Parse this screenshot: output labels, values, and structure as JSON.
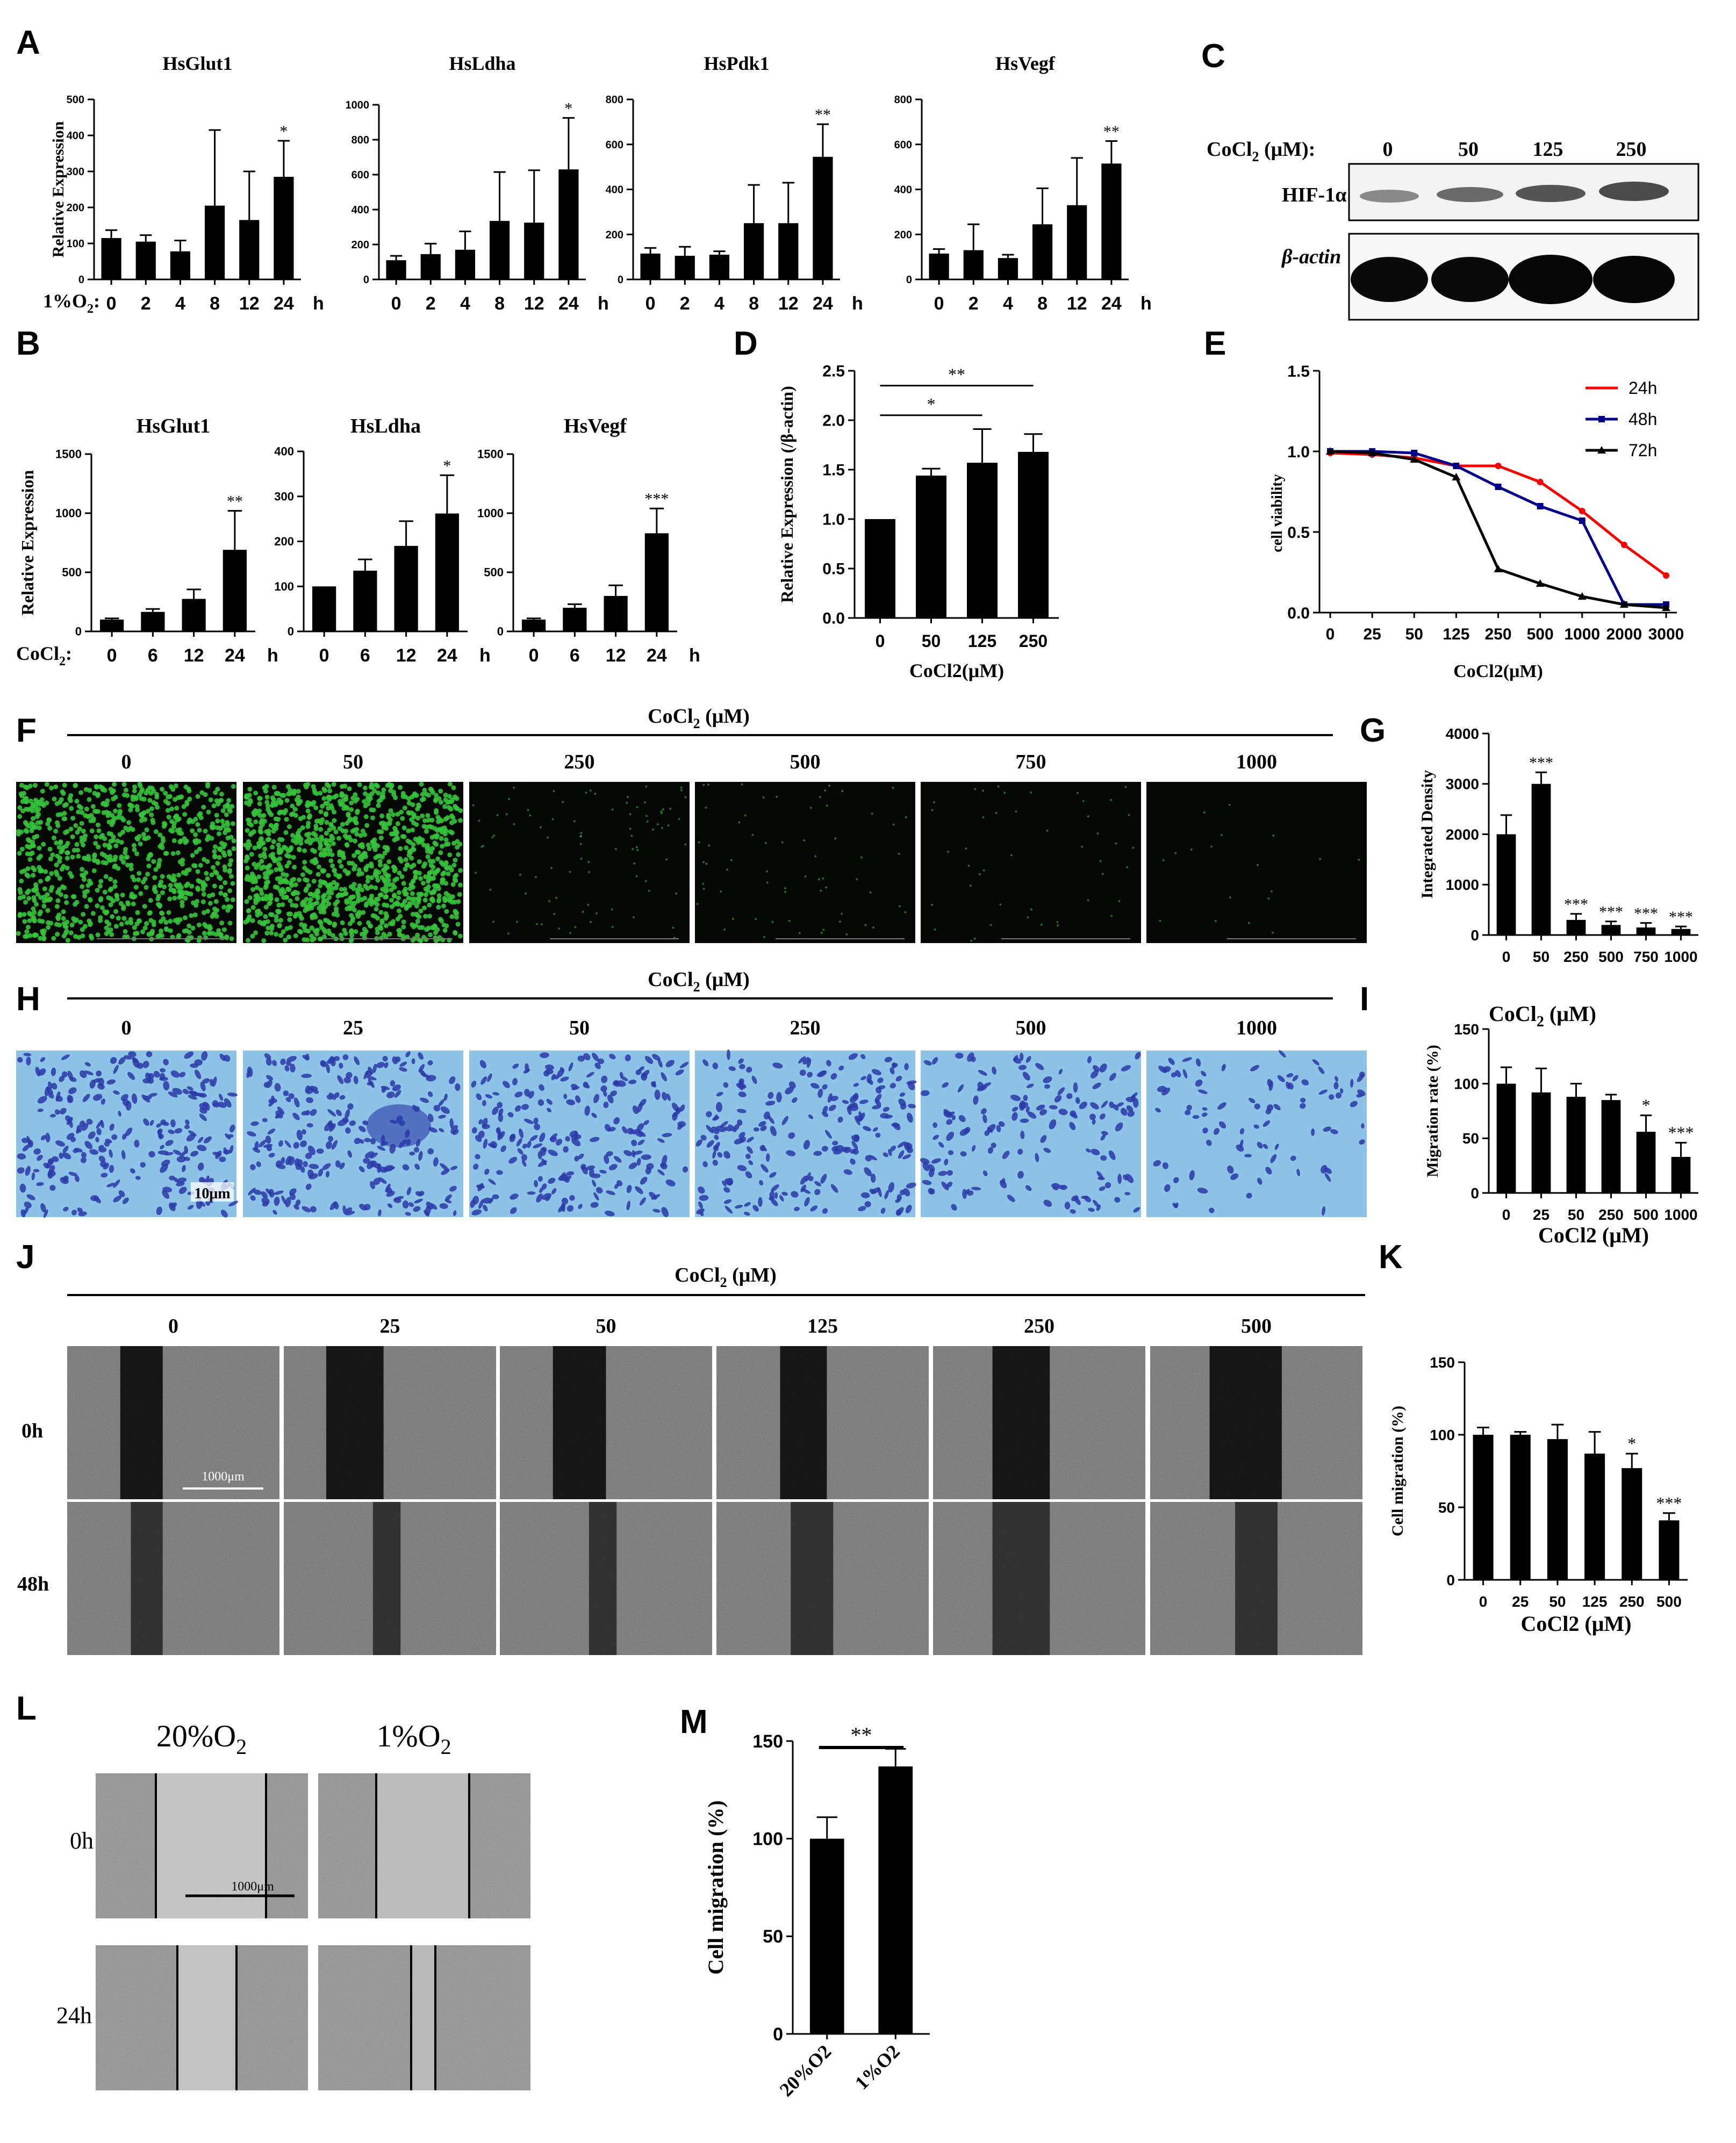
{
  "colors": {
    "bar": "#000000",
    "line_24h": "#ff0000",
    "line_48h": "#00008b",
    "line_72h": "#000000",
    "fluor_bg": "#050805",
    "fluor_cell": "#35c33a",
    "transwell_bg": "#8cc3e6",
    "transwell_cell": "#2c3aa8",
    "scratch_bg": "#3a3a3a",
    "phase_bg": "#b8b8b8"
  },
  "panels": {
    "A": {
      "letter": "A",
      "xcat_prefix": "1%O",
      "xcat_sub": "2",
      "xcat_suffix": ":",
      "unit": "h"
    },
    "B": {
      "letter": "B",
      "xcat_prefix": "CoCl",
      "xcat_sub": "2",
      "xcat_suffix": ":",
      "unit": "h"
    },
    "C": {
      "letter": "C",
      "header_prefix": "CoCl",
      "header_sub": "2",
      "header_suffix": " (μM):",
      "doses": [
        "0",
        "50",
        "125",
        "250"
      ],
      "rows": [
        "HIF-1α",
        "β-actin"
      ]
    },
    "D": {
      "letter": "D"
    },
    "E": {
      "letter": "E"
    },
    "F": {
      "letter": "F",
      "header_prefix": "CoCl",
      "header_sub": "2",
      "header_suffix": " (μM)",
      "doses": [
        "0",
        "50",
        "250",
        "500",
        "750",
        "1000"
      ],
      "cell_density": [
        1.0,
        1.35,
        0.1,
        0.07,
        0.05,
        0.02
      ]
    },
    "G": {
      "letter": "G"
    },
    "H": {
      "letter": "H",
      "header_prefix": "CoCl",
      "header_sub": "2",
      "header_suffix": " (μM)",
      "doses": [
        "0",
        "25",
        "50",
        "250",
        "500",
        "1000"
      ],
      "scale_bar": "10μm",
      "cell_density": [
        1.0,
        0.95,
        0.9,
        0.85,
        0.6,
        0.35
      ]
    },
    "I": {
      "letter": "I",
      "title_prefix": "CoCl",
      "title_sub": "2",
      "title_suffix": " (μM)"
    },
    "J": {
      "letter": "J",
      "header_prefix": "CoCl",
      "header_sub": "2",
      "header_suffix": " (μM)",
      "doses": [
        "0",
        "25",
        "50",
        "125",
        "250",
        "500"
      ],
      "rows": [
        "0h",
        "48h"
      ],
      "scale_bar": "1000μm"
    },
    "K": {
      "letter": "K"
    },
    "L": {
      "letter": "L",
      "conditions": [
        {
          "prefix": "20%O",
          "sub": "2"
        },
        {
          "prefix": "1%O",
          "sub": "2"
        }
      ],
      "rows": [
        "0h",
        "24h"
      ],
      "scale_bar": "1000μm"
    },
    "M": {
      "letter": "M"
    }
  },
  "chart_data": [
    {
      "id": "A1",
      "type": "bar",
      "title": "HsGlut1",
      "ylabel": "Relative Expression",
      "categories": [
        "0",
        "2",
        "4",
        "8",
        "12",
        "24"
      ],
      "values": [
        115,
        105,
        78,
        205,
        165,
        285
      ],
      "errors": [
        22,
        18,
        30,
        210,
        135,
        100
      ],
      "sig": [
        "",
        "",
        "",
        "",
        "",
        "*"
      ],
      "ylim": [
        0,
        500
      ],
      "yticks": [
        0,
        100,
        200,
        300,
        400,
        500
      ]
    },
    {
      "id": "A2",
      "type": "bar",
      "title": "HsLdha",
      "ylabel": "",
      "categories": [
        "0",
        "2",
        "4",
        "8",
        "12",
        "24"
      ],
      "values": [
        110,
        145,
        170,
        335,
        325,
        630
      ],
      "errors": [
        25,
        60,
        105,
        280,
        300,
        295
      ],
      "sig": [
        "",
        "",
        "",
        "",
        "",
        "*"
      ],
      "ylim": [
        0,
        1000
      ],
      "yticks": [
        0,
        200,
        400,
        600,
        800,
        1000
      ]
    },
    {
      "id": "A3",
      "type": "bar",
      "title": "HsPdk1",
      "ylabel": "",
      "categories": [
        "0",
        "2",
        "4",
        "8",
        "12",
        "24"
      ],
      "values": [
        115,
        105,
        110,
        250,
        250,
        545
      ],
      "errors": [
        25,
        40,
        15,
        170,
        180,
        145
      ],
      "sig": [
        "",
        "",
        "",
        "",
        "",
        "**"
      ],
      "ylim": [
        0,
        800
      ],
      "yticks": [
        0,
        200,
        400,
        600,
        800
      ]
    },
    {
      "id": "A4",
      "type": "bar",
      "title": "HsVegf",
      "ylabel": "",
      "categories": [
        "0",
        "2",
        "4",
        "8",
        "12",
        "24"
      ],
      "values": [
        115,
        130,
        95,
        245,
        330,
        515
      ],
      "errors": [
        20,
        115,
        15,
        160,
        210,
        100
      ],
      "sig": [
        "",
        "",
        "",
        "",
        "",
        "**"
      ],
      "ylim": [
        0,
        800
      ],
      "yticks": [
        0,
        200,
        400,
        600,
        800
      ]
    },
    {
      "id": "B1",
      "type": "bar",
      "title": "HsGlut1",
      "ylabel": "Relative Expression",
      "categories": [
        "0",
        "6",
        "12",
        "24"
      ],
      "values": [
        100,
        165,
        275,
        690
      ],
      "errors": [
        10,
        25,
        80,
        330
      ],
      "sig": [
        "",
        "",
        "",
        "**"
      ],
      "ylim": [
        0,
        1500
      ],
      "yticks": [
        0,
        500,
        1000,
        1500
      ]
    },
    {
      "id": "B2",
      "type": "bar",
      "title": "HsLdha",
      "ylabel": "",
      "categories": [
        "0",
        "6",
        "12",
        "24"
      ],
      "values": [
        100,
        135,
        190,
        262
      ],
      "errors": [
        0,
        25,
        55,
        85
      ],
      "sig": [
        "",
        "",
        "",
        "*"
      ],
      "ylim": [
        0,
        400
      ],
      "yticks": [
        0,
        100,
        200,
        300,
        400
      ]
    },
    {
      "id": "B3",
      "type": "bar",
      "title": "HsVegf",
      "ylabel": "",
      "categories": [
        "0",
        "6",
        "12",
        "24"
      ],
      "values": [
        100,
        200,
        300,
        830
      ],
      "errors": [
        10,
        30,
        90,
        210
      ],
      "sig": [
        "",
        "",
        "",
        "***"
      ],
      "ylim": [
        0,
        1500
      ],
      "yticks": [
        0,
        500,
        1000,
        1500
      ]
    },
    {
      "id": "D",
      "type": "bar",
      "title": "",
      "ylabel": "Relative Expression (/β-actin)",
      "xlabel": "CoCl2(μM)",
      "categories": [
        "0",
        "50",
        "125",
        "250"
      ],
      "values": [
        1.0,
        1.44,
        1.57,
        1.68
      ],
      "errors": [
        0,
        0.07,
        0.34,
        0.18
      ],
      "sig": [
        "",
        "",
        "",
        ""
      ],
      "ylim": [
        0,
        2.5
      ],
      "yticks": [
        0.0,
        0.5,
        1.0,
        1.5,
        2.0,
        2.5
      ],
      "brackets": [
        {
          "from": 0,
          "to": 2,
          "label": "*"
        },
        {
          "from": 0,
          "to": 3,
          "label": "**"
        }
      ]
    },
    {
      "id": "E",
      "type": "line",
      "title": "",
      "ylabel": "cell viability",
      "xlabel": "CoCl2(μM)",
      "categories": [
        "0",
        "25",
        "50",
        "125",
        "250",
        "500",
        "1000",
        "2000",
        "3000"
      ],
      "ylim": [
        0,
        1.5
      ],
      "yticks": [
        0.0,
        0.5,
        1.0,
        1.5
      ],
      "series": [
        {
          "name": "24h",
          "color": "#ff0000",
          "marker": "circle",
          "values": [
            0.99,
            0.98,
            0.96,
            0.91,
            0.91,
            0.81,
            0.63,
            0.42,
            0.23
          ]
        },
        {
          "name": "48h",
          "color": "#00008b",
          "marker": "square",
          "values": [
            1.0,
            1.0,
            0.99,
            0.91,
            0.78,
            0.66,
            0.57,
            0.05,
            0.05
          ]
        },
        {
          "name": "72h",
          "color": "#000000",
          "marker": "triangle",
          "values": [
            1.0,
            0.99,
            0.95,
            0.84,
            0.27,
            0.18,
            0.1,
            0.05,
            0.03
          ]
        }
      ],
      "legend": "top-right"
    },
    {
      "id": "G",
      "type": "bar",
      "title": "",
      "ylabel": "Integrated Density",
      "categories": [
        "0",
        "50",
        "250",
        "500",
        "750",
        "1000"
      ],
      "values": [
        2000,
        3000,
        300,
        200,
        150,
        120
      ],
      "errors": [
        380,
        230,
        120,
        70,
        90,
        50
      ],
      "sig": [
        "",
        "***",
        "***",
        "***",
        "***",
        "***"
      ],
      "ylim": [
        0,
        4000
      ],
      "yticks": [
        0,
        1000,
        2000,
        3000,
        4000
      ]
    },
    {
      "id": "I",
      "type": "bar",
      "title": "",
      "ylabel": "Migration rate (%)",
      "xlabel": "CoCl2 (μM)",
      "categories": [
        "0",
        "25",
        "50",
        "250",
        "500",
        "1000"
      ],
      "values": [
        100,
        92,
        88,
        85,
        56,
        33
      ],
      "errors": [
        15,
        22,
        12,
        5,
        15,
        13
      ],
      "sig": [
        "",
        "",
        "",
        "",
        "*",
        "***"
      ],
      "ylim": [
        0,
        150
      ],
      "yticks": [
        0,
        50,
        100,
        150
      ]
    },
    {
      "id": "K",
      "type": "bar",
      "title": "",
      "ylabel": "Cell migration (%)",
      "xlabel": "CoCl2 (μM)",
      "categories": [
        "0",
        "25",
        "50",
        "125",
        "250",
        "500"
      ],
      "values": [
        100,
        100,
        97,
        87,
        77,
        41
      ],
      "errors": [
        5,
        2,
        10,
        15,
        10,
        5
      ],
      "sig": [
        "",
        "",
        "",
        "",
        "*",
        "***"
      ],
      "ylim": [
        0,
        150
      ],
      "yticks": [
        0,
        50,
        100,
        150
      ]
    },
    {
      "id": "M",
      "type": "bar",
      "title": "",
      "ylabel": "Cell migration (%)",
      "categories": [
        "20%O2",
        "1%O2"
      ],
      "values": [
        100,
        137
      ],
      "errors": [
        11,
        9
      ],
      "sig": [
        "",
        ""
      ],
      "ylim": [
        0,
        150
      ],
      "yticks": [
        0,
        50,
        100,
        150
      ],
      "brackets": [
        {
          "from": 0,
          "to": 1,
          "label": "**"
        }
      ]
    }
  ]
}
